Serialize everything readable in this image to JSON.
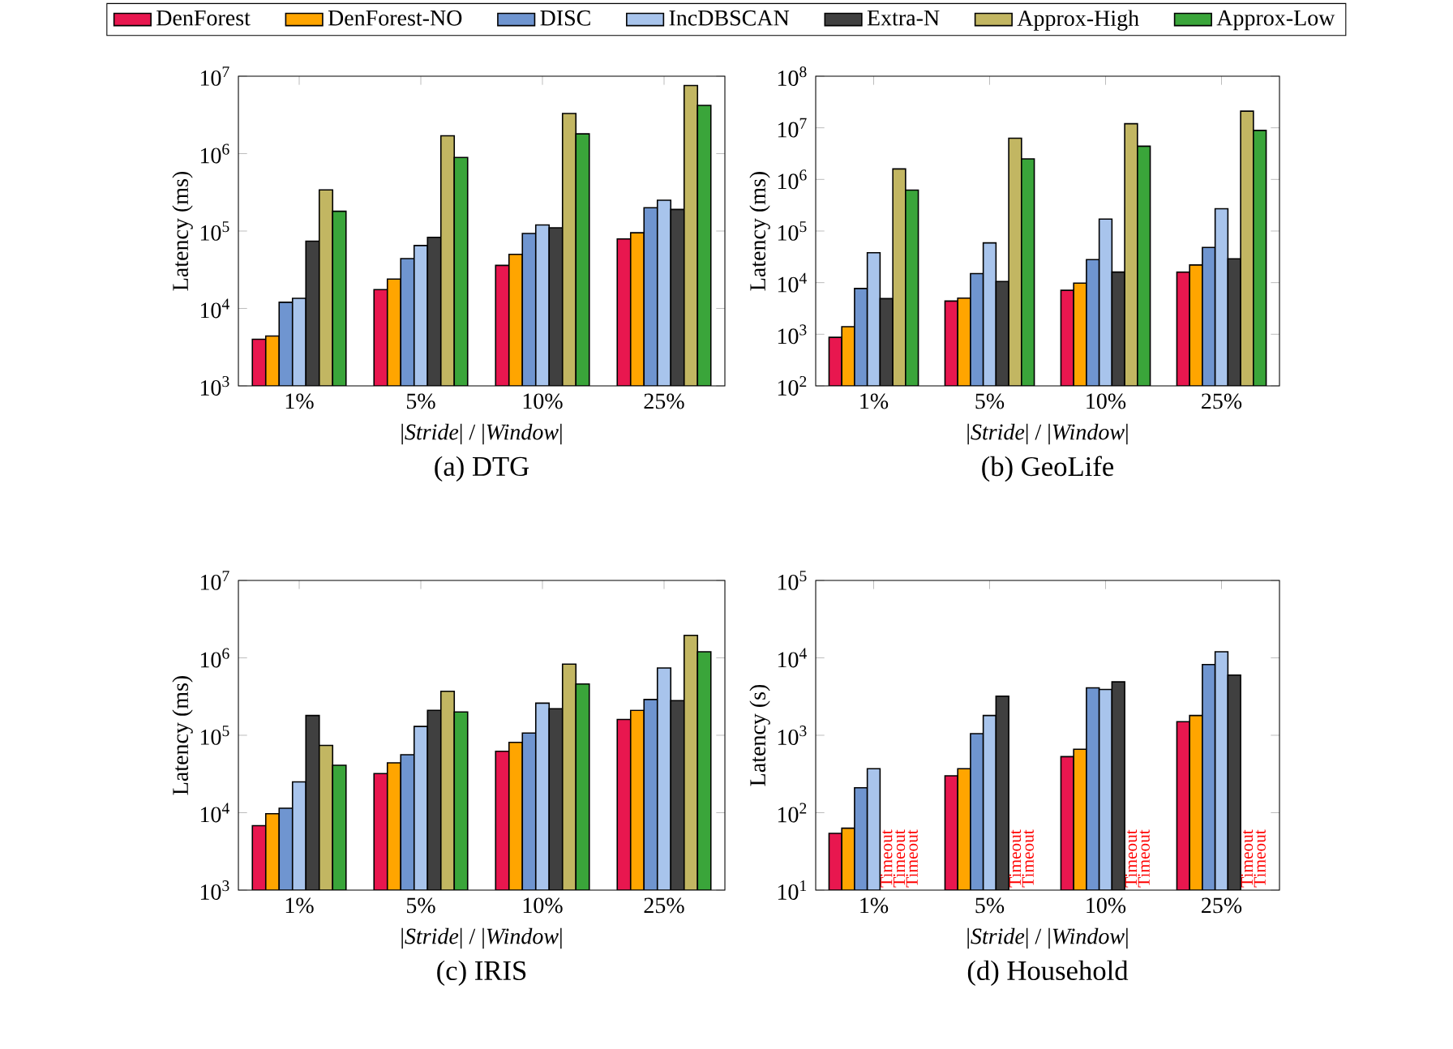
{
  "chart_data": [
    {
      "type": "bar",
      "title": "(a) DTG",
      "xlabel": "|*Stride*| / |*Window*|",
      "ylabel": "Latency (ms)",
      "categories": [
        "1%",
        "5%",
        "10%",
        "25%"
      ],
      "log": "y",
      "ylim": [
        1000,
        10000000
      ],
      "yticks": [
        {
          "value": 1000,
          "label": "10$^{3}$"
        },
        {
          "value": 10000,
          "label": "10$^{4}$"
        },
        {
          "value": 100000,
          "label": "10$^{5}$"
        },
        {
          "value": 1000000,
          "label": "10$^{6}$"
        },
        {
          "value": 10000000,
          "label": "10$^{7}$"
        }
      ],
      "legend": "top",
      "series": [
        {
          "name": "DenForest",
          "color": "#e8174f",
          "values": [
            4000,
            17500,
            36000,
            79000
          ]
        },
        {
          "name": "DenForest-NO",
          "color": "#ffa500",
          "values": [
            4400,
            24000,
            50000,
            95000
          ]
        },
        {
          "name": "DISC",
          "color": "#6f95d0",
          "values": [
            12000,
            44000,
            93000,
            200000
          ]
        },
        {
          "name": "IncDBSCAN",
          "color": "#a8c4ec",
          "values": [
            13500,
            65000,
            120000,
            250000
          ]
        },
        {
          "name": "Extra-N",
          "color": "#404040",
          "values": [
            74000,
            83000,
            110000,
            190000
          ]
        },
        {
          "name": "Approx-High",
          "color": "#c2b662",
          "values": [
            340000,
            1700000,
            3300000,
            7600000
          ]
        },
        {
          "name": "Approx-Low",
          "color": "#3aa53a",
          "values": [
            180000,
            890000,
            1800000,
            4200000
          ]
        }
      ]
    },
    {
      "type": "bar",
      "title": "(b) GeoLife",
      "xlabel": "|*Stride*| / |*Window*|",
      "ylabel": "Latency (ms)",
      "categories": [
        "1%",
        "5%",
        "10%",
        "25%"
      ],
      "log": "y",
      "ylim": [
        100,
        100000000
      ],
      "yticks": [
        {
          "value": 100,
          "label": "10$^{2}$"
        },
        {
          "value": 1000,
          "label": "10$^{3}$"
        },
        {
          "value": 10000,
          "label": "10$^{4}$"
        },
        {
          "value": 100000,
          "label": "10$^{5}$"
        },
        {
          "value": 1000000,
          "label": "10$^{6}$"
        },
        {
          "value": 10000000,
          "label": "10$^{7}$"
        },
        {
          "value": 100000000,
          "label": "10$^{8}$"
        }
      ],
      "series": [
        {
          "color": "#e8174f",
          "values": [
            870,
            4400,
            7100,
            16000
          ]
        },
        {
          "color": "#ffa500",
          "values": [
            1400,
            5000,
            9800,
            22000
          ]
        },
        {
          "color": "#6f95d0",
          "values": [
            7700,
            15000,
            28000,
            48000
          ]
        },
        {
          "color": "#a8c4ec",
          "values": [
            38000,
            59000,
            170000,
            270000
          ]
        },
        {
          "color": "#404040",
          "values": [
            4900,
            10500,
            16000,
            29000
          ]
        },
        {
          "color": "#c2b662",
          "values": [
            1600000,
            6300000,
            12000000,
            21000000
          ]
        },
        {
          "color": "#3aa53a",
          "values": [
            620000,
            2500000,
            4400000,
            8900000
          ]
        }
      ]
    },
    {
      "type": "bar",
      "title": "(c) IRIS",
      "xlabel": "|*Stride*| / |*Window*|",
      "ylabel": "Latency (ms)",
      "categories": [
        "1%",
        "5%",
        "10%",
        "25%"
      ],
      "log": "y",
      "ylim": [
        1000,
        10000000
      ],
      "yticks": [
        {
          "value": 1000,
          "label": "10$^{3}$"
        },
        {
          "value": 10000,
          "label": "10$^{4}$"
        },
        {
          "value": 100000,
          "label": "10$^{5}$"
        },
        {
          "value": 1000000,
          "label": "10$^{6}$"
        },
        {
          "value": 10000000,
          "label": "10$^{7}$"
        }
      ],
      "series": [
        {
          "color": "#e8174f",
          "values": [
            6800,
            32000,
            62000,
            160000
          ]
        },
        {
          "color": "#ffa500",
          "values": [
            9700,
            44000,
            81000,
            210000
          ]
        },
        {
          "color": "#6f95d0",
          "values": [
            11400,
            56000,
            107000,
            290000
          ]
        },
        {
          "color": "#a8c4ec",
          "values": [
            25000,
            130000,
            260000,
            740000
          ]
        },
        {
          "color": "#404040",
          "values": [
            180000,
            210000,
            220000,
            280000
          ]
        },
        {
          "color": "#c2b662",
          "values": [
            74000,
            370000,
            830000,
            1950000
          ]
        },
        {
          "color": "#3aa53a",
          "values": [
            41000,
            200000,
            460000,
            1200000
          ]
        }
      ]
    },
    {
      "type": "bar",
      "title": "(d) Household",
      "xlabel": "|*Stride*| / |*Window*|",
      "ylabel": "Latency (s)",
      "categories": [
        "1%",
        "5%",
        "10%",
        "25%"
      ],
      "log": "y",
      "ylim": [
        10,
        100000
      ],
      "yticks": [
        {
          "value": 10,
          "label": "10$^{1}$"
        },
        {
          "value": 100,
          "label": "10$^{2}$"
        },
        {
          "value": 1000,
          "label": "10$^{3}$"
        },
        {
          "value": 10000,
          "label": "10$^{4}$"
        },
        {
          "value": 100000,
          "label": "10$^{5}$"
        }
      ],
      "series": [
        {
          "color": "#e8174f",
          "values": [
            54,
            300,
            530,
            1500
          ]
        },
        {
          "color": "#ffa500",
          "values": [
            63,
            370,
            660,
            1800
          ]
        },
        {
          "color": "#6f95d0",
          "values": [
            210,
            1050,
            4100,
            8200
          ]
        },
        {
          "color": "#a8c4ec",
          "values": [
            370,
            1800,
            3900,
            12000
          ]
        },
        {
          "color": "#404040",
          "values": [
            null,
            3200,
            4900,
            6000
          ],
          "value_labels": [
            "Timeout",
            null,
            null,
            null
          ]
        },
        {
          "color": "#c2b662",
          "values": [
            null,
            null,
            null,
            null
          ],
          "value_labels": [
            "Timeout",
            "Timeout",
            "Timeout",
            "Timeout"
          ]
        },
        {
          "color": "#3aa53a",
          "values": [
            null,
            null,
            null,
            null
          ],
          "value_labels": [
            "Timeout",
            "Timeout",
            "Timeout",
            "Timeout"
          ]
        }
      ]
    }
  ]
}
